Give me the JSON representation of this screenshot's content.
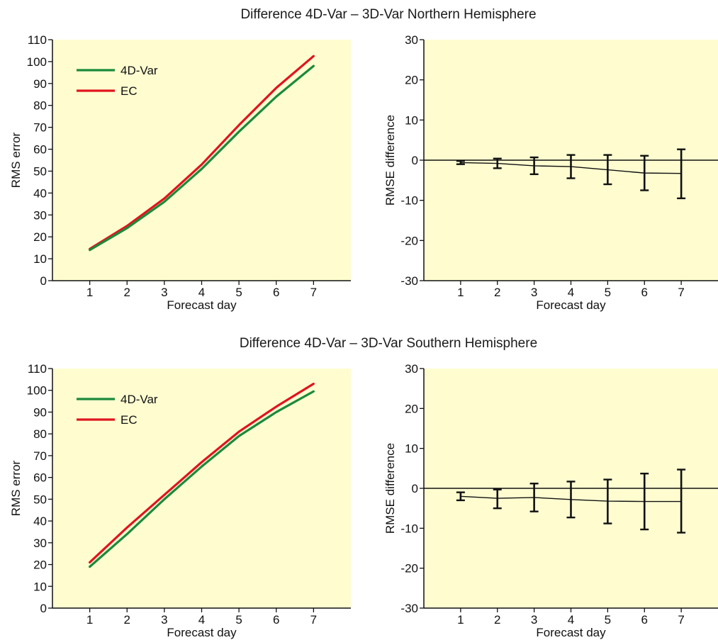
{
  "titles": {
    "north": "Difference 4D-Var – 3D-Var Northern Hemisphere",
    "south": "Difference 4D-Var – 3D-Var Southern Hemisphere"
  },
  "colors": {
    "panel_bg": "#fffdd0",
    "series_4dvar": "#1a8a3a",
    "series_ec": "#e0141e",
    "errorbar": "#111111"
  },
  "chart_data": [
    {
      "id": "north-rms",
      "type": "line",
      "xlabel": "Forecast day",
      "ylabel": "RMS error",
      "x": [
        1,
        2,
        3,
        4,
        5,
        6,
        7
      ],
      "xticks": [
        1,
        2,
        3,
        4,
        5,
        6,
        7
      ],
      "xlim": [
        0,
        8
      ],
      "ylim": [
        0,
        110
      ],
      "yticks": [
        0,
        10,
        20,
        30,
        40,
        50,
        60,
        70,
        80,
        90,
        100,
        110
      ],
      "legend": "top-left",
      "series": [
        {
          "name": "4D-Var",
          "color": "#1a8a3a",
          "values": [
            14,
            24,
            36,
            51,
            68,
            84,
            98
          ]
        },
        {
          "name": "EC",
          "color": "#e0141e",
          "values": [
            14.5,
            25,
            37.5,
            53,
            71,
            88,
            102.5
          ]
        }
      ]
    },
    {
      "id": "north-diff",
      "type": "errorbar",
      "xlabel": "Forecast day",
      "ylabel": "RMSE difference",
      "x": [
        1,
        2,
        3,
        4,
        5,
        6,
        7
      ],
      "xticks": [
        1,
        2,
        3,
        4,
        5,
        6,
        7
      ],
      "xlim": [
        0,
        8
      ],
      "ylim": [
        -30,
        30
      ],
      "yticks": [
        -30,
        -20,
        -10,
        0,
        10,
        20,
        30
      ],
      "mean": [
        -0.6,
        -0.8,
        -1.4,
        -1.6,
        -2.4,
        -3.2,
        -3.3
      ],
      "lower": [
        -1.0,
        -2.0,
        -3.5,
        -4.5,
        -6.0,
        -7.5,
        -9.5
      ],
      "upper": [
        -0.2,
        0.4,
        0.7,
        1.3,
        1.3,
        1.1,
        2.7
      ]
    },
    {
      "id": "south-rms",
      "type": "line",
      "xlabel": "Forecast day",
      "ylabel": "RMS error",
      "x": [
        1,
        2,
        3,
        4,
        5,
        6,
        7
      ],
      "xticks": [
        1,
        2,
        3,
        4,
        5,
        6,
        7
      ],
      "xlim": [
        0,
        8
      ],
      "ylim": [
        0,
        110
      ],
      "yticks": [
        0,
        10,
        20,
        30,
        40,
        50,
        60,
        70,
        80,
        90,
        100,
        110
      ],
      "legend": "top-left",
      "series": [
        {
          "name": "4D-Var",
          "color": "#1a8a3a",
          "values": [
            19,
            34,
            50,
            65,
            79,
            90,
            99.5
          ]
        },
        {
          "name": "EC",
          "color": "#e0141e",
          "values": [
            21,
            37,
            52,
            67,
            81,
            92.5,
            103
          ]
        }
      ]
    },
    {
      "id": "south-diff",
      "type": "errorbar",
      "xlabel": "Forecast day",
      "ylabel": "RMSE difference",
      "x": [
        1,
        2,
        3,
        4,
        5,
        6,
        7
      ],
      "xticks": [
        1,
        2,
        3,
        4,
        5,
        6,
        7
      ],
      "xlim": [
        0,
        8
      ],
      "ylim": [
        -30,
        30
      ],
      "yticks": [
        -30,
        -20,
        -10,
        0,
        10,
        20,
        30
      ],
      "mean": [
        -2.0,
        -2.5,
        -2.3,
        -2.8,
        -3.2,
        -3.3,
        -3.3
      ],
      "lower": [
        -3.0,
        -5.0,
        -5.8,
        -7.3,
        -8.8,
        -10.3,
        -11.1
      ],
      "upper": [
        -1.0,
        -0.3,
        1.2,
        1.7,
        2.2,
        3.7,
        4.7
      ]
    }
  ]
}
